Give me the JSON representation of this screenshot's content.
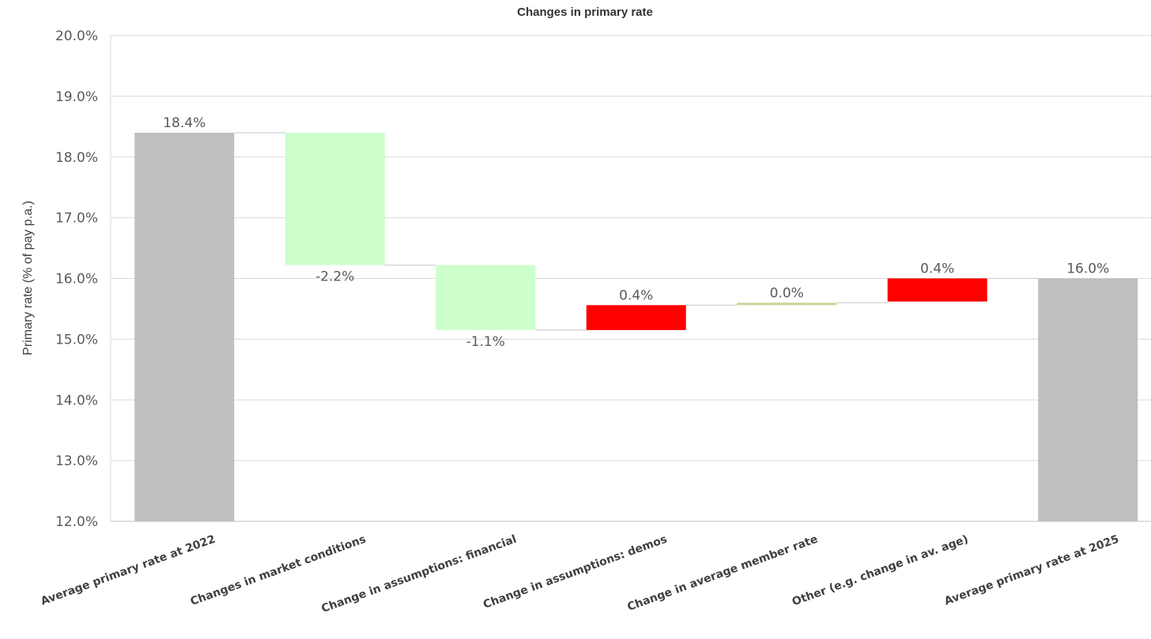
{
  "chart_data": {
    "type": "bar",
    "subtype": "waterfall",
    "title": "Changes in primary rate",
    "xlabel": "",
    "ylabel": "Primary rate (% of pay p.a.)",
    "ylim": [
      12.0,
      20.0
    ],
    "yticks": [
      "12.0%",
      "13.0%",
      "14.0%",
      "15.0%",
      "16.0%",
      "17.0%",
      "18.0%",
      "19.0%",
      "20.0%"
    ],
    "grid": true,
    "legend": "none",
    "categories": [
      "Average primary rate at 2022",
      "Changes in market conditions",
      "Change in assumptions: financial",
      "Change in assumptions: demos",
      "Change in average member rate",
      "Other (e.g. change in av. age)",
      "Average primary rate at 2025"
    ],
    "bars": [
      {
        "kind": "total",
        "start": 12.0,
        "end": 18.4,
        "label": "18.4%",
        "color": "#bfbfbf"
      },
      {
        "kind": "change",
        "start": 18.4,
        "end": 16.22,
        "label": "-2.2%",
        "color": "#ccffcc"
      },
      {
        "kind": "change",
        "start": 16.22,
        "end": 15.15,
        "label": "-1.1%",
        "color": "#ccffcc"
      },
      {
        "kind": "change",
        "start": 15.15,
        "end": 15.56,
        "label": "0.4%",
        "color": "#ff0000"
      },
      {
        "kind": "change",
        "start": 15.56,
        "end": 15.6,
        "label": "0.0%",
        "color": "#c4d79b"
      },
      {
        "kind": "change",
        "start": 15.62,
        "end": 16.0,
        "label": "0.4%",
        "color": "#ff0000"
      },
      {
        "kind": "total",
        "start": 12.0,
        "end": 16.0,
        "label": "16.0%",
        "color": "#bfbfbf"
      }
    ]
  }
}
